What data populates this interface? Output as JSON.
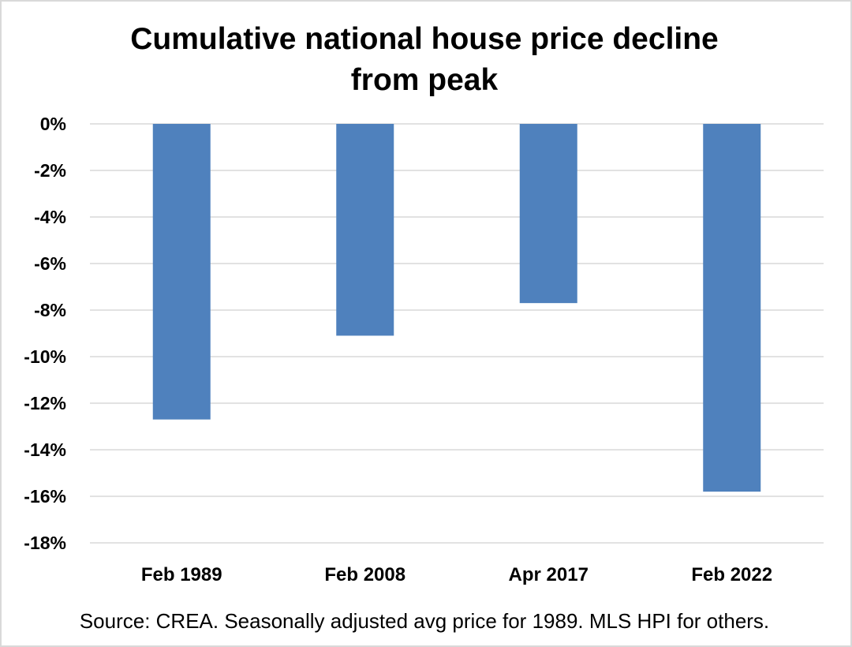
{
  "chart_data": {
    "type": "bar",
    "title_lines": [
      "Cumulative national house price decline",
      "from peak"
    ],
    "categories": [
      "Feb 1989",
      "Feb 2008",
      "Apr 2017",
      "Feb 2022"
    ],
    "values": [
      -12.7,
      -9.1,
      -7.7,
      -15.8
    ],
    "ylim": [
      -18,
      0
    ],
    "yticks": [
      0,
      -2,
      -4,
      -6,
      -8,
      -10,
      -12,
      -14,
      -16,
      -18
    ],
    "ytick_labels": [
      "0%",
      "-2%",
      "-4%",
      "-6%",
      "-8%",
      "-10%",
      "-12%",
      "-14%",
      "-16%",
      "-18%"
    ],
    "grid": true,
    "legend": "none",
    "bar_color": "#4f81bd",
    "grid_color": "#d9d9d9",
    "source": "Source:  CREA.  Seasonally adjusted avg price for 1989. MLS HPI for others."
  }
}
